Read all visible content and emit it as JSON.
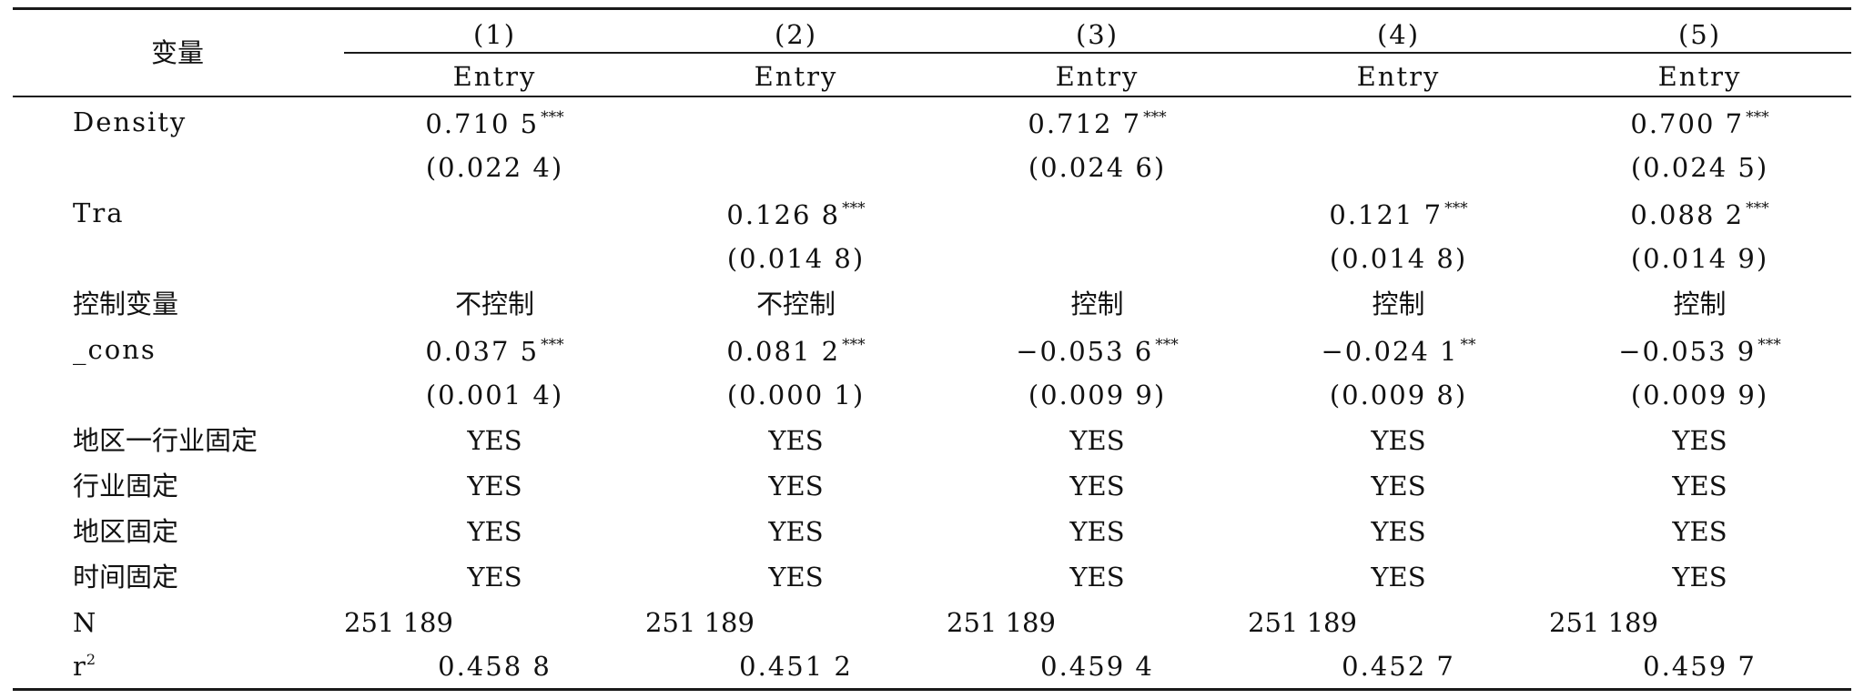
{
  "header": {
    "variable_label": "变量",
    "columns": [
      {
        "num": "(1)",
        "dep": "Entry"
      },
      {
        "num": "(2)",
        "dep": "Entry"
      },
      {
        "num": "(3)",
        "dep": "Entry"
      },
      {
        "num": "(4)",
        "dep": "Entry"
      },
      {
        "num": "(5)",
        "dep": "Entry"
      }
    ]
  },
  "rows": {
    "density": {
      "label": "Density",
      "coef": [
        {
          "v": "0.710 5",
          "s": "***"
        },
        {
          "v": "",
          "s": ""
        },
        {
          "v": "0.712 7",
          "s": "***"
        },
        {
          "v": "",
          "s": ""
        },
        {
          "v": "0.700 7",
          "s": "***"
        }
      ],
      "se": [
        "(0.022 4)",
        "",
        "(0.024 6)",
        "",
        "(0.024 5)"
      ]
    },
    "tra": {
      "label": "Tra",
      "coef": [
        {
          "v": "",
          "s": ""
        },
        {
          "v": "0.126 8",
          "s": "***"
        },
        {
          "v": "",
          "s": ""
        },
        {
          "v": "0.121 7",
          "s": "***"
        },
        {
          "v": "0.088 2",
          "s": "***"
        }
      ],
      "se": [
        "",
        "(0.014 8)",
        "",
        "(0.014 8)",
        "(0.014 9)"
      ]
    },
    "controls": {
      "label": "控制变量",
      "values": [
        "不控制",
        "不控制",
        "控制",
        "控制",
        "控制"
      ]
    },
    "cons": {
      "label": "_cons",
      "coef": [
        {
          "v": "0.037 5",
          "s": "***"
        },
        {
          "v": "0.081 2",
          "s": "***"
        },
        {
          "v": "−0.053 6",
          "s": "***"
        },
        {
          "v": "−0.024 1",
          "s": "**"
        },
        {
          "v": "−0.053 9",
          "s": "***"
        }
      ],
      "se": [
        "(0.001 4)",
        "(0.000 1)",
        "(0.009 9)",
        "(0.009 8)",
        "(0.009 9)"
      ]
    },
    "fixed_effects": [
      {
        "label": "地区一行业固定",
        "values": [
          "YES",
          "YES",
          "YES",
          "YES",
          "YES"
        ]
      },
      {
        "label": "行业固定",
        "values": [
          "YES",
          "YES",
          "YES",
          "YES",
          "YES"
        ]
      },
      {
        "label": "地区固定",
        "values": [
          "YES",
          "YES",
          "YES",
          "YES",
          "YES"
        ]
      },
      {
        "label": "时间固定",
        "values": [
          "YES",
          "YES",
          "YES",
          "YES",
          "YES"
        ]
      }
    ],
    "n": {
      "label": "N",
      "values": [
        "251 189",
        "251 189",
        "251 189",
        "251 189",
        "251 189"
      ]
    },
    "r2": {
      "label": "r",
      "label_sup": "2",
      "values": [
        "0.458 8",
        "0.451 2",
        "0.459 4",
        "0.452 7",
        "0.459 7"
      ]
    }
  }
}
